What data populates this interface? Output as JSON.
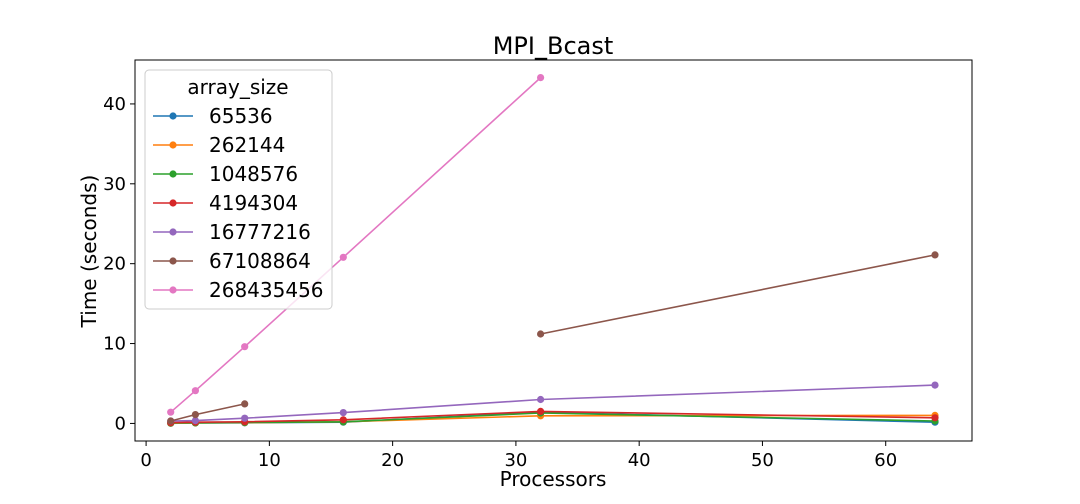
{
  "chart_data": {
    "type": "line",
    "title": "MPI_Bcast",
    "xlabel": "Processors",
    "ylabel": "Time (seconds)",
    "xlim": [
      -0.9,
      67.0
    ],
    "ylim": [
      -2.2,
      45.5
    ],
    "xticks": [
      0,
      10,
      20,
      30,
      40,
      50,
      60
    ],
    "yticks": [
      0,
      10,
      20,
      30,
      40
    ],
    "grid": false,
    "legend": {
      "title": "array_size",
      "placement": "top-left"
    },
    "series": [
      {
        "name": "65536",
        "color": "#1f77b4",
        "x": [
          2,
          4,
          8,
          16,
          32,
          64
        ],
        "y": [
          0.02,
          0.05,
          0.08,
          0.15,
          1.4,
          0.15
        ]
      },
      {
        "name": "262144",
        "color": "#ff7f0e",
        "x": [
          2,
          4,
          8,
          16,
          32,
          64
        ],
        "y": [
          0.03,
          0.06,
          0.1,
          0.2,
          0.95,
          1.0
        ]
      },
      {
        "name": "1048576",
        "color": "#2ca02c",
        "x": [
          2,
          4,
          8,
          16,
          32,
          64
        ],
        "y": [
          0.05,
          0.08,
          0.12,
          0.2,
          1.3,
          0.3
        ]
      },
      {
        "name": "4194304",
        "color": "#d62728",
        "x": [
          2,
          4,
          8,
          16,
          32,
          64
        ],
        "y": [
          0.1,
          0.15,
          0.2,
          0.45,
          1.5,
          0.7
        ]
      },
      {
        "name": "16777216",
        "color": "#9467bd",
        "x": [
          2,
          4,
          8,
          16,
          32,
          64
        ],
        "y": [
          0.3,
          0.35,
          0.65,
          1.35,
          3.0,
          4.8
        ]
      },
      {
        "name": "67108864",
        "color": "#8c564b",
        "x": [
          2,
          4,
          8,
          32,
          64
        ],
        "y": [
          0.3,
          1.1,
          2.45,
          11.2,
          21.1
        ],
        "segments": [
          [
            0,
            2
          ],
          [
            3,
            4
          ]
        ]
      },
      {
        "name": "268435456",
        "color": "#e377c2",
        "x": [
          2,
          4,
          8,
          16,
          32
        ],
        "y": [
          1.4,
          4.1,
          9.6,
          20.8,
          43.3
        ]
      }
    ]
  }
}
